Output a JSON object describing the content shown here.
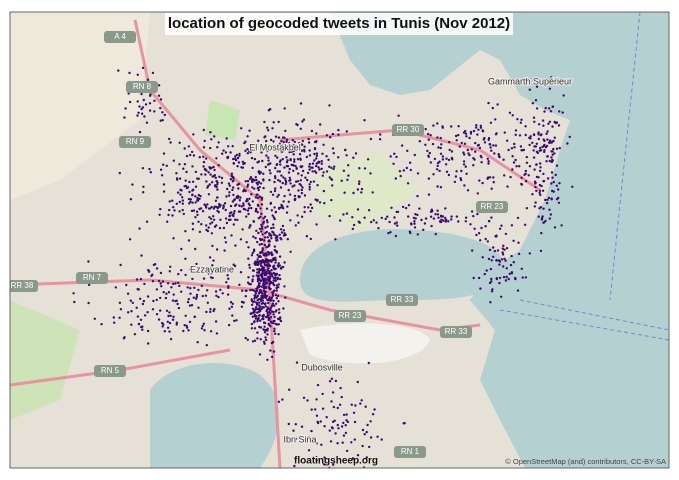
{
  "map": {
    "title": "location of geocoded tweets in Tunis (Nov 2012)",
    "places": [
      "Gammarth Supérieur",
      "El Mostakbel",
      "Ezzayatine",
      "Dubosville",
      "Ibn Sina"
    ],
    "roads": [
      "A 4",
      "RN 8",
      "RN 9",
      "RR 30",
      "RR 23",
      "RN 7",
      "RR 38",
      "RR 23",
      "RR 33",
      "RR 33",
      "RN 5",
      "RN 1"
    ],
    "credit": "© OpenStreetMap (and) contributors, CC-BY-SA",
    "watermark": "floatingsheep.org"
  }
}
